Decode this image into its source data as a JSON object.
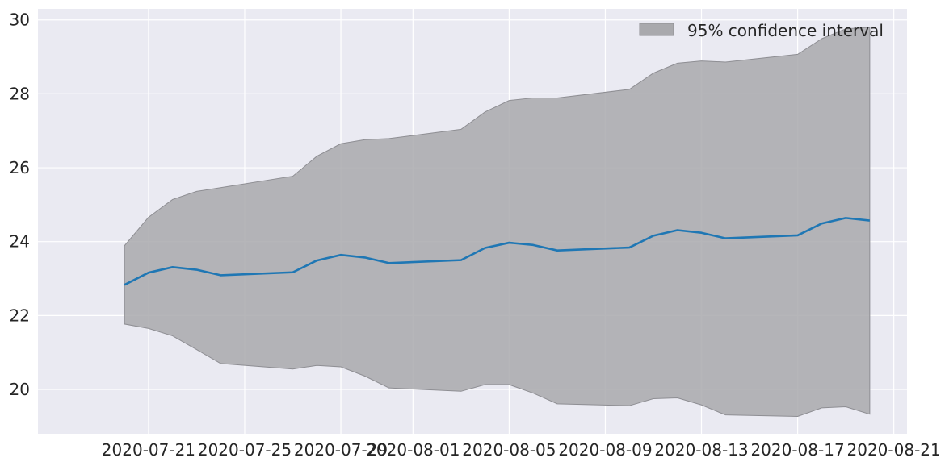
{
  "chart_data": {
    "type": "area",
    "title": "",
    "xlabel": "",
    "ylabel": "",
    "x_axis_type": "date",
    "x_ticks": [
      "2020-07-21",
      "2020-07-25",
      "2020-07-29",
      "2020-08-01",
      "2020-08-05",
      "2020-08-09",
      "2020-08-13",
      "2020-08-17",
      "2020-08-21"
    ],
    "y_ticks": [
      20,
      22,
      24,
      26,
      28,
      30
    ],
    "xlim": [
      "2020-07-17",
      "2020-08-21"
    ],
    "ylim": [
      18.8,
      30.3
    ],
    "grid": true,
    "legend_position": "top-right",
    "colors": {
      "background": "#eaeaf2",
      "grid": "#ffffff",
      "line": "#1f77b4",
      "band": "#a9a9ad",
      "band_edge": "#8e8e93",
      "text": "#262626"
    },
    "series": [
      {
        "kind": "line",
        "x": [
          "2020-07-20",
          "2020-07-21",
          "2020-07-22",
          "2020-07-23",
          "2020-07-24",
          "2020-07-27",
          "2020-07-28",
          "2020-07-29",
          "2020-07-30",
          "2020-07-31",
          "2020-08-03",
          "2020-08-04",
          "2020-08-05",
          "2020-08-06",
          "2020-08-07",
          "2020-08-10",
          "2020-08-11",
          "2020-08-12",
          "2020-08-13",
          "2020-08-14",
          "2020-08-17",
          "2020-08-18",
          "2020-08-19",
          "2020-08-20"
        ],
        "y": [
          22.83,
          23.16,
          23.31,
          23.24,
          23.09,
          23.17,
          23.49,
          23.64,
          23.57,
          23.42,
          23.5,
          23.83,
          23.97,
          23.91,
          23.76,
          23.84,
          24.16,
          24.31,
          24.24,
          24.09,
          24.17,
          24.49,
          24.64,
          24.57
        ]
      },
      {
        "name": "95% confidence interval",
        "kind": "band",
        "x": [
          "2020-07-20",
          "2020-07-21",
          "2020-07-22",
          "2020-07-23",
          "2020-07-24",
          "2020-07-27",
          "2020-07-28",
          "2020-07-29",
          "2020-07-30",
          "2020-07-31",
          "2020-08-03",
          "2020-08-04",
          "2020-08-05",
          "2020-08-06",
          "2020-08-07",
          "2020-08-10",
          "2020-08-11",
          "2020-08-12",
          "2020-08-13",
          "2020-08-14",
          "2020-08-17",
          "2020-08-18",
          "2020-08-19",
          "2020-08-20"
        ],
        "lower": [
          21.77,
          21.65,
          21.45,
          21.08,
          20.7,
          20.55,
          20.65,
          20.61,
          20.36,
          20.04,
          19.95,
          20.13,
          20.13,
          19.9,
          19.61,
          19.56,
          19.75,
          19.77,
          19.58,
          19.31,
          19.27,
          19.5,
          19.53,
          19.33
        ],
        "upper": [
          23.89,
          24.66,
          25.14,
          25.36,
          25.46,
          25.77,
          26.31,
          26.65,
          26.76,
          26.79,
          27.04,
          27.51,
          27.82,
          27.89,
          27.89,
          28.12,
          28.56,
          28.83,
          28.89,
          28.86,
          29.07,
          29.49,
          29.76,
          29.8
        ]
      }
    ]
  }
}
